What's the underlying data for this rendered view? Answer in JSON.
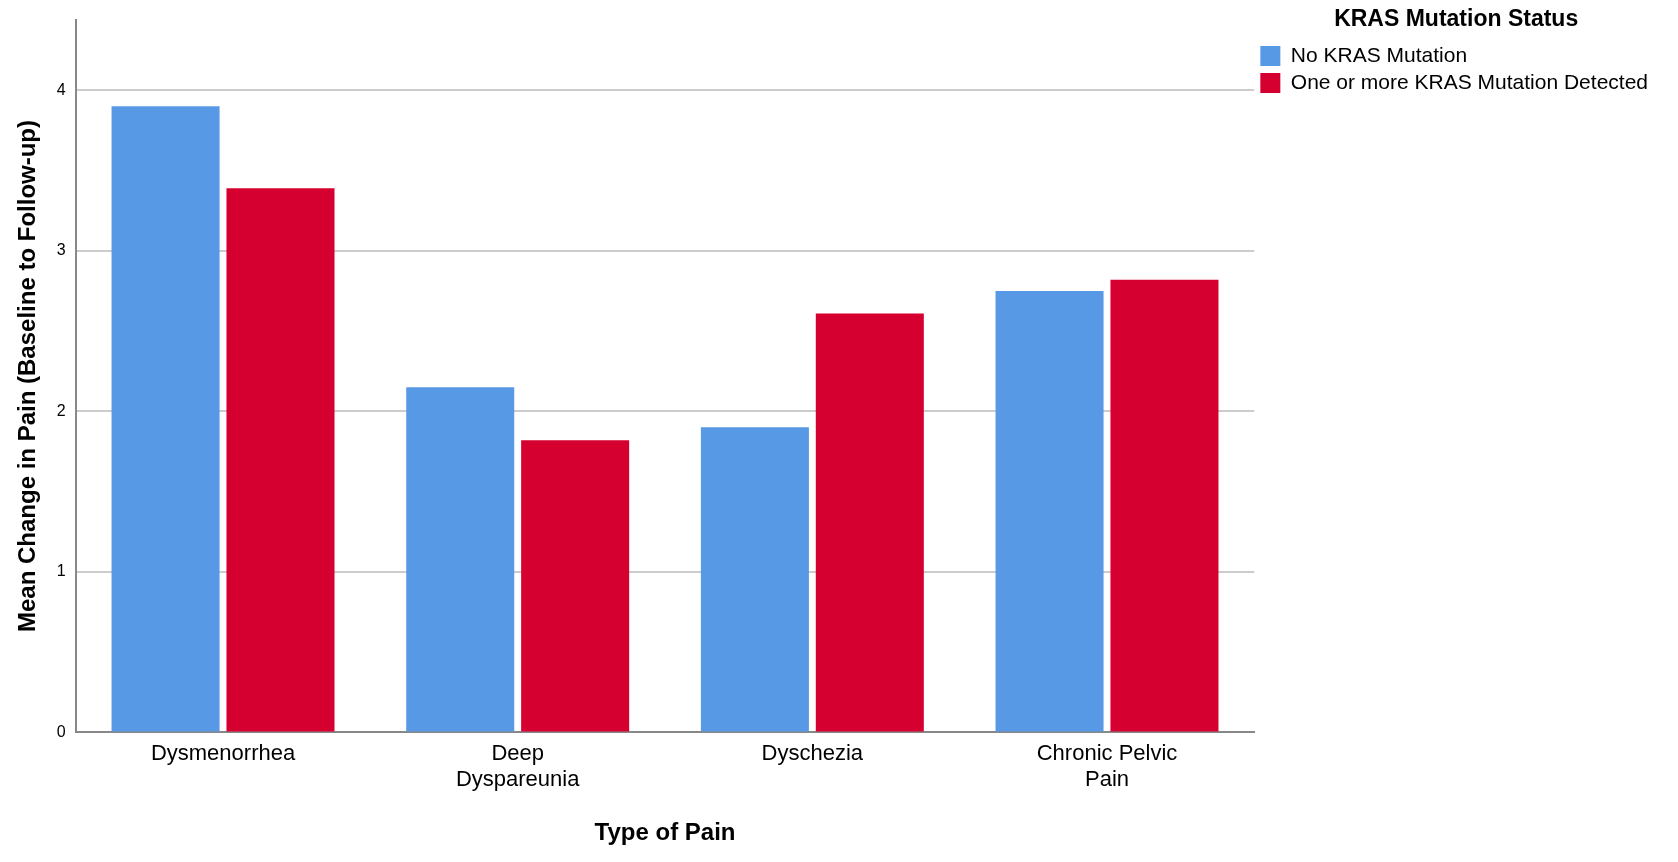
{
  "chart_data": {
    "type": "bar",
    "xlabel": "Type of Pain",
    "ylabel": "Mean Change in Pain (Baseline to Follow-up)",
    "legend_title": "KRAS Mutation Status",
    "categories": [
      "Dysmenorrhea",
      "Deep Dyspareunia",
      "Dyschezia",
      "Chronic Pelvic Pain"
    ],
    "series": [
      {
        "name": "No KRAS Mutation",
        "color": "#5899e5",
        "values": [
          3.9,
          2.15,
          1.9,
          2.75
        ]
      },
      {
        "name": "One or more KRAS Mutation Detected",
        "color": "#d5002f",
        "values": [
          3.39,
          1.82,
          2.61,
          2.82
        ]
      }
    ],
    "ylim": [
      0,
      4.44
    ],
    "yticks": [
      0,
      1,
      2,
      3,
      4
    ],
    "grid": "y",
    "legend": "top right"
  }
}
